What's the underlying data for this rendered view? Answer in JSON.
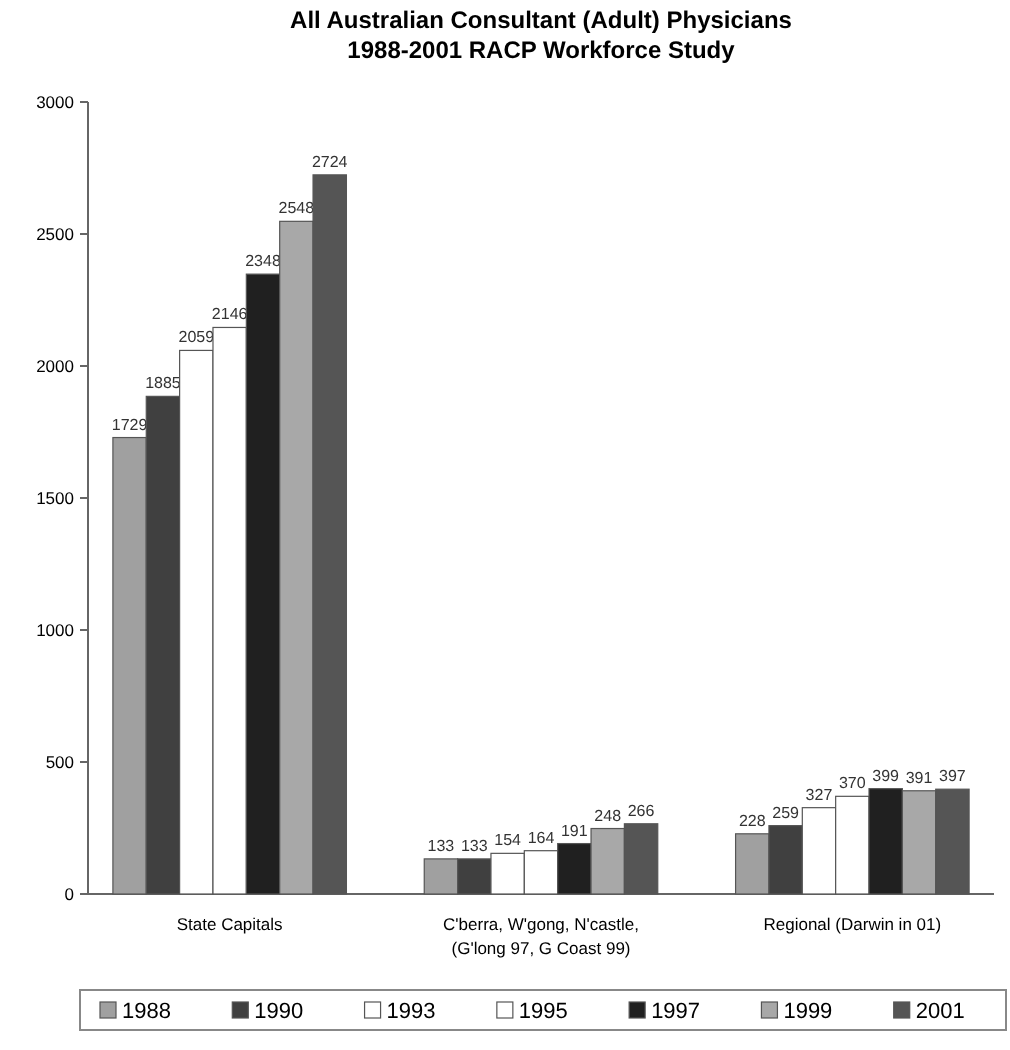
{
  "chart_data": {
    "type": "bar",
    "title": "All Australian Consultant (Adult) Physicians\n1988-2001 RACP Workforce Study",
    "categories": [
      "State Capitals",
      "C'berra, W'gong, N'castle,\n(G'long 97, G Coast 99)",
      "Regional (Darwin in 01)"
    ],
    "series": [
      {
        "name": "1988",
        "color": "#a0a0a0",
        "values": [
          1729,
          133,
          228
        ]
      },
      {
        "name": "1990",
        "color": "#404040",
        "values": [
          1885,
          133,
          259
        ]
      },
      {
        "name": "1993",
        "color": "#ffffff",
        "values": [
          2059,
          154,
          327
        ]
      },
      {
        "name": "1995",
        "color": "#ffffff",
        "values": [
          2146,
          164,
          370
        ]
      },
      {
        "name": "1997",
        "color": "#202020",
        "values": [
          2348,
          191,
          399
        ]
      },
      {
        "name": "1999",
        "color": "#a8a8a8",
        "values": [
          2548,
          248,
          391
        ]
      },
      {
        "name": "2001",
        "color": "#555555",
        "values": [
          2724,
          266,
          397
        ]
      }
    ],
    "ylim": [
      0,
      3000
    ],
    "yticks": [
      0,
      500,
      1000,
      1500,
      2000,
      2500,
      3000
    ],
    "data_labels": true,
    "grid": false,
    "legend": "bottom"
  }
}
